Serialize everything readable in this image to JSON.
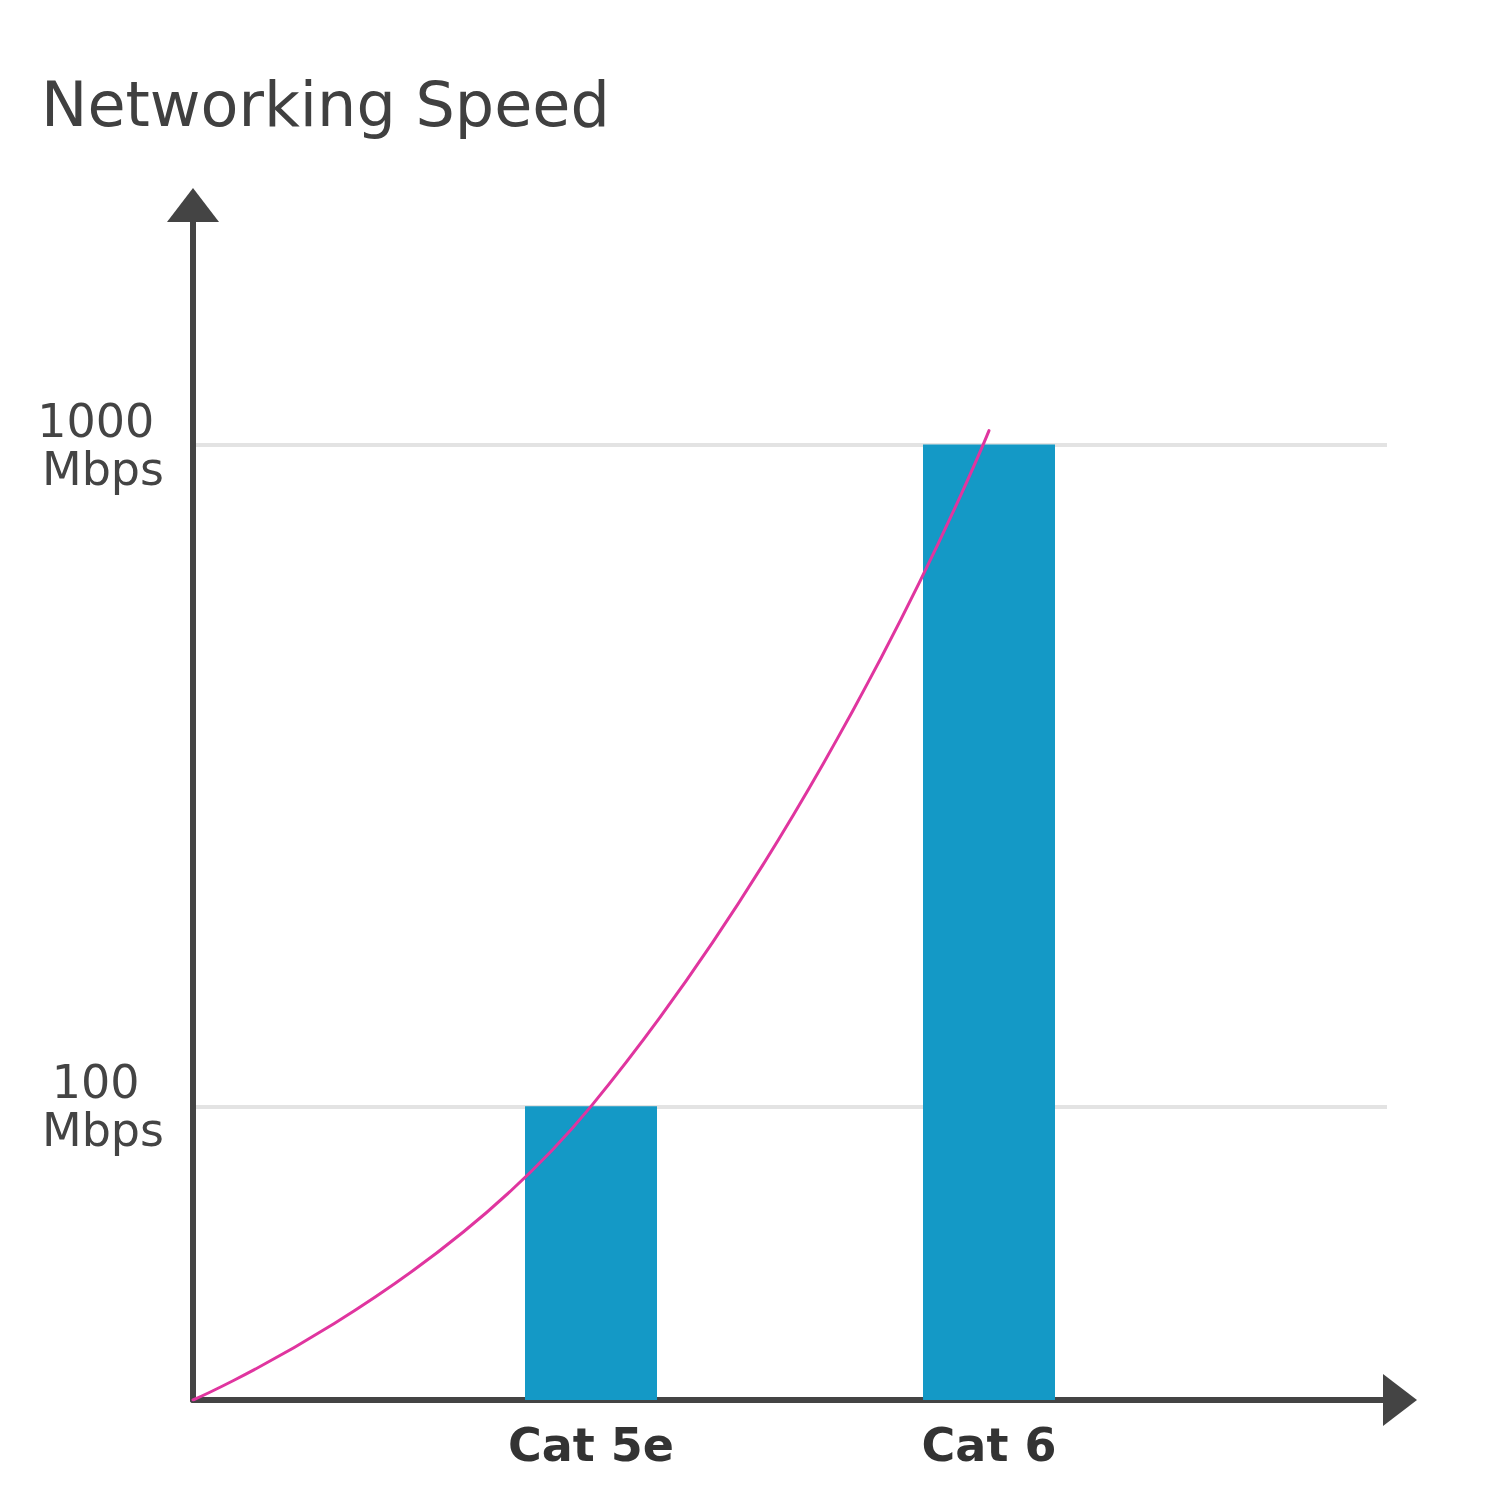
{
  "chart_data": {
    "type": "bar",
    "title": "Networking Speed",
    "categories": [
      null,
      "Cat 5e",
      "Cat 6",
      null
    ],
    "series": [
      {
        "color": "#1499c6",
        "values": [
          null,
          100,
          1000,
          null
        ]
      },
      {
        "type": "line",
        "color": "#e0359f",
        "values": [
          36,
          100,
          1050,
          null
        ]
      }
    ],
    "log": true,
    "ylim": [
      36,
      2200
    ],
    "yticks": [
      {
        "value": 100,
        "label": "100 Mbps"
      },
      {
        "value": 1000,
        "label": "1000 Mbps"
      }
    ],
    "grid": "y",
    "marker": "none",
    "line_style": "solid"
  }
}
